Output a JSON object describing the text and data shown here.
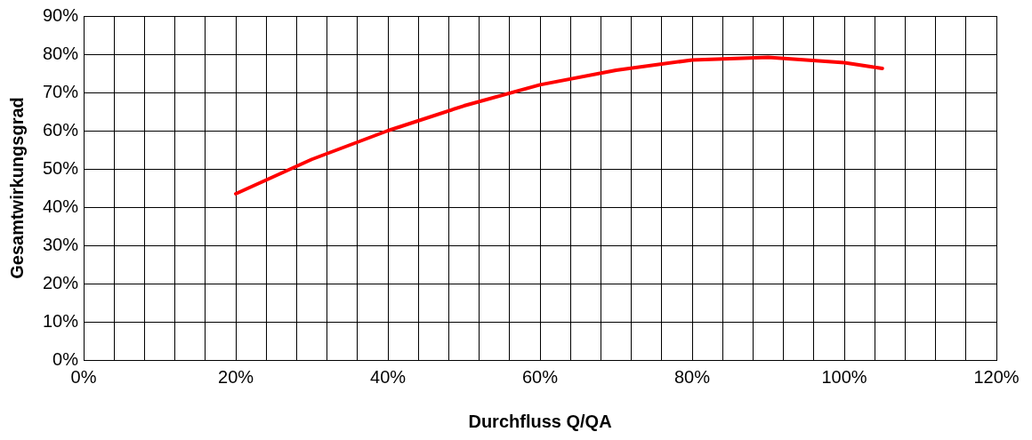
{
  "chart_data": {
    "type": "line",
    "xlabel": "Durchfluss Q/QA",
    "ylabel": "Gesamtwirkungsgrad",
    "x": [
      20,
      30,
      40,
      50,
      60,
      70,
      80,
      90,
      100,
      105
    ],
    "series": [
      {
        "color": "#ff0000",
        "values": [
          43.5,
          52.5,
          60,
          66.5,
          72,
          75.8,
          78.5,
          79.2,
          77.8,
          76.3
        ]
      }
    ],
    "xlim": [
      0,
      120
    ],
    "xticks": [
      {
        "value": 0,
        "label": "0%"
      },
      {
        "value": 4,
        "label": null
      },
      {
        "value": 8,
        "label": null
      },
      {
        "value": 12,
        "label": null
      },
      {
        "value": 16,
        "label": null
      },
      {
        "value": 20,
        "label": "20%"
      },
      {
        "value": 24,
        "label": null
      },
      {
        "value": 28,
        "label": null
      },
      {
        "value": 32,
        "label": null
      },
      {
        "value": 36,
        "label": null
      },
      {
        "value": 40,
        "label": "40%"
      },
      {
        "value": 44,
        "label": null
      },
      {
        "value": 48,
        "label": null
      },
      {
        "value": 52,
        "label": null
      },
      {
        "value": 56,
        "label": null
      },
      {
        "value": 60,
        "label": "60%"
      },
      {
        "value": 64,
        "label": null
      },
      {
        "value": 68,
        "label": null
      },
      {
        "value": 72,
        "label": null
      },
      {
        "value": 76,
        "label": null
      },
      {
        "value": 80,
        "label": "80%"
      },
      {
        "value": 84,
        "label": null
      },
      {
        "value": 88,
        "label": null
      },
      {
        "value": 92,
        "label": null
      },
      {
        "value": 96,
        "label": null
      },
      {
        "value": 100,
        "label": "100%"
      },
      {
        "value": 104,
        "label": null
      },
      {
        "value": 108,
        "label": null
      },
      {
        "value": 112,
        "label": null
      },
      {
        "value": 116,
        "label": null
      },
      {
        "value": 120,
        "label": "120%"
      }
    ],
    "ylim": [
      0,
      90
    ],
    "yticks": [
      {
        "value": 0,
        "label": "0%"
      },
      {
        "value": 10,
        "label": "10%"
      },
      {
        "value": 20,
        "label": "20%"
      },
      {
        "value": 30,
        "label": "30%"
      },
      {
        "value": 40,
        "label": "40%"
      },
      {
        "value": 50,
        "label": "50%"
      },
      {
        "value": 60,
        "label": "60%"
      },
      {
        "value": 70,
        "label": "70%"
      },
      {
        "value": 80,
        "label": "80%"
      },
      {
        "value": 90,
        "label": "90%"
      }
    ],
    "grid": true,
    "marker": "none",
    "line_style": "solid"
  }
}
